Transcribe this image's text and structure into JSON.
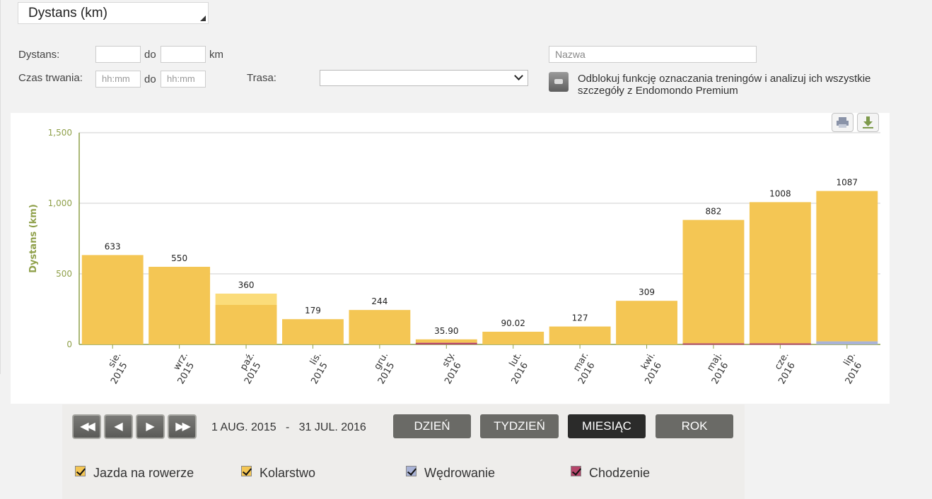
{
  "metric_dropdown": {
    "label": "Dystans (km)"
  },
  "filters": {
    "distance_label": "Dystans:",
    "to_label": "do",
    "unit_label": "km",
    "duration_label": "Czas trwania:",
    "duration_to_label": "do",
    "duration_from_placeholder": "hh:mm",
    "duration_to_placeholder": "hh:mm",
    "route_label": "Trasa:",
    "route_value": "",
    "name_placeholder": "Nazwa",
    "premium_text": "Odblokuj funkcję oznaczania treningów i analizuj ich wszystkie szczegóły z Endomondo Premium"
  },
  "chart_data": {
    "type": "bar",
    "stacked": true,
    "ylabel": "Dystans (km)",
    "ylim": [
      0,
      1500
    ],
    "yticks": [
      "1,500",
      "1,000",
      "500",
      "0"
    ],
    "categories": [
      [
        "sie.",
        "2015"
      ],
      [
        "wrz.",
        "2015"
      ],
      [
        "paź.",
        "2015"
      ],
      [
        "lis.",
        "2015"
      ],
      [
        "gru.",
        "2015"
      ],
      [
        "sty.",
        "2016"
      ],
      [
        "lut.",
        "2016"
      ],
      [
        "mar.",
        "2016"
      ],
      [
        "kwi.",
        "2016"
      ],
      [
        "maj.",
        "2016"
      ],
      [
        "cze.",
        "2016"
      ],
      [
        "lip.",
        "2016"
      ]
    ],
    "totals": [
      "633",
      "550",
      "360",
      "179",
      "244",
      "35.90",
      "90.02",
      "127",
      "309",
      "882",
      "1008",
      "1087"
    ],
    "series": [
      {
        "name": "Chodzenie",
        "color": "#b5456a",
        "values": [
          0,
          0,
          0,
          0,
          0,
          12,
          0,
          0,
          0,
          8,
          8,
          0
        ]
      },
      {
        "name": "Wędrowanie",
        "color": "#a9b3d6",
        "values": [
          0,
          0,
          0,
          0,
          0,
          0,
          0,
          0,
          0,
          0,
          0,
          22
        ]
      },
      {
        "name": "Jazda na rowerze",
        "color": "#f4c654",
        "values": [
          633,
          550,
          280,
          179,
          244,
          23.9,
          90.02,
          127,
          309,
          874,
          1000,
          1065
        ]
      },
      {
        "name": "Kolarstwo",
        "color": "#fbdc7a",
        "values": [
          0,
          0,
          80,
          0,
          0,
          0,
          0,
          0,
          0,
          0,
          0,
          0
        ]
      }
    ]
  },
  "navigation": {
    "first_icon": "double-left-icon",
    "prev_icon": "left-icon",
    "next_icon": "right-icon",
    "last_icon": "double-right-icon",
    "range_start": "1 AUG. 2015",
    "range_sep": "-",
    "range_end": "31 JUL. 2016"
  },
  "periods": {
    "day": "DZIEŃ",
    "week": "TYDZIEŃ",
    "month": "MIESIĄC",
    "year": "ROK",
    "active": "month"
  },
  "legend": [
    {
      "label": "Jazda na rowerze",
      "color": "#f4c654"
    },
    {
      "label": "Kolarstwo",
      "color": "#f4c654"
    },
    {
      "label": "Wędrowanie",
      "color": "#a9b3d6"
    },
    {
      "label": "Chodzenie",
      "color": "#b5456a"
    }
  ]
}
